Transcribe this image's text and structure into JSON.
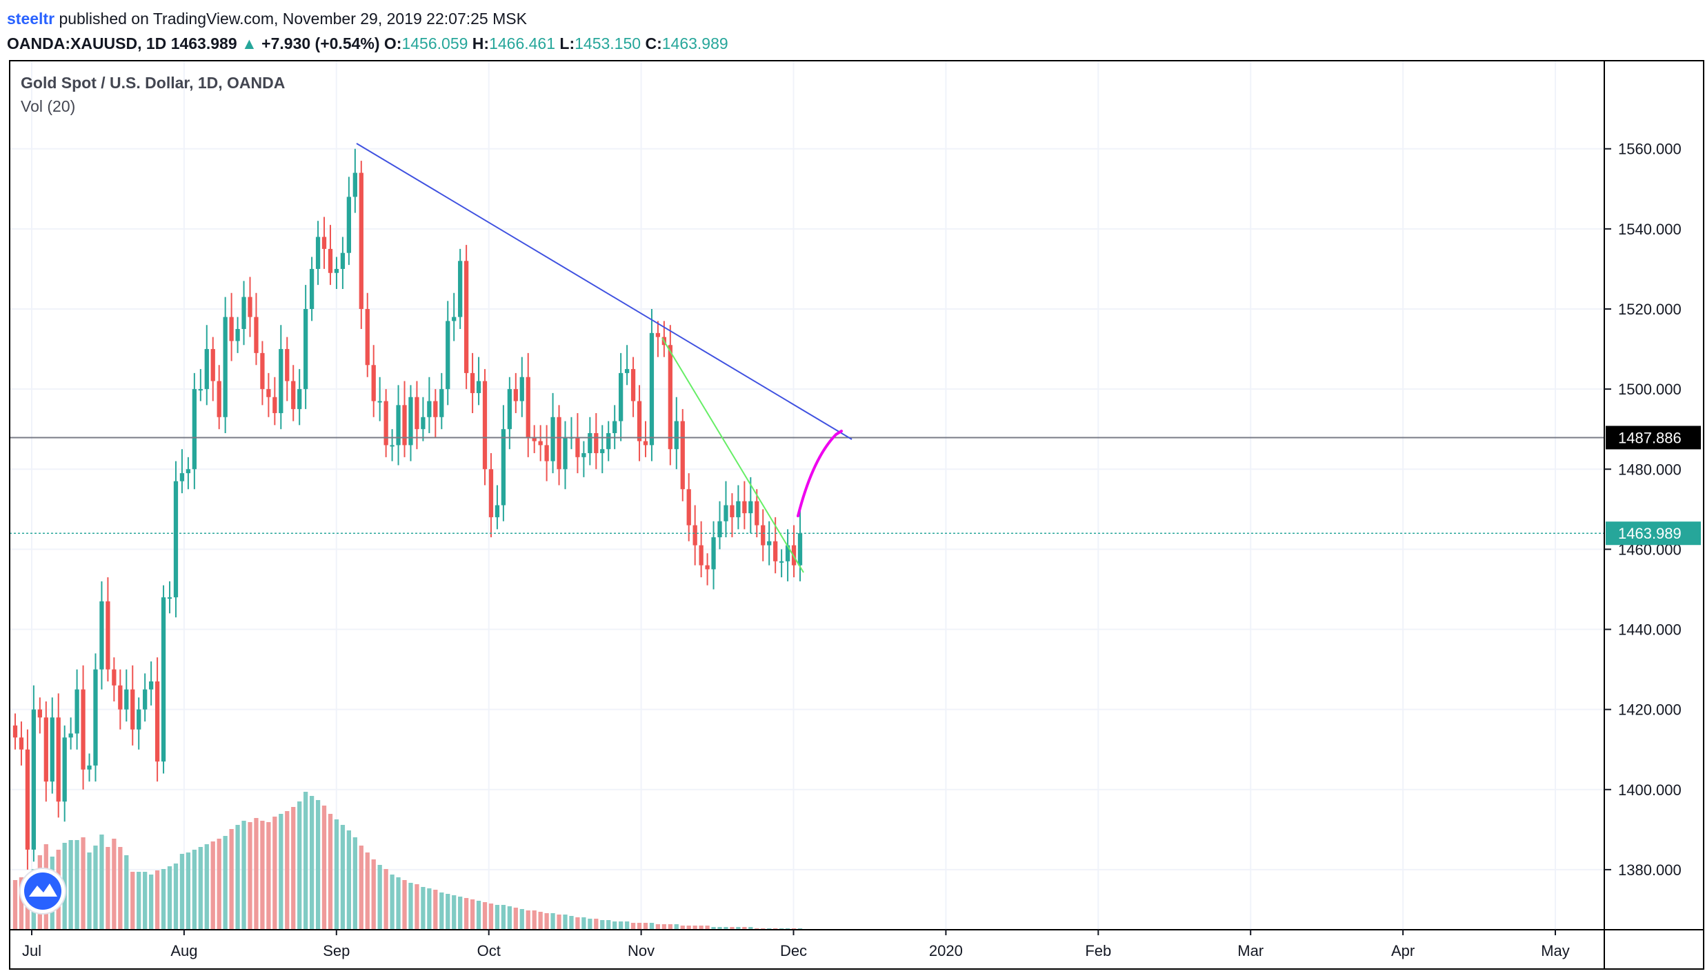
{
  "header": {
    "author": "steeltr",
    "published": "published on TradingView.com, November 29, 2019 22:07:25 MSK",
    "symbol": "OANDA:XAUUSD, 1D",
    "last": "1463.989",
    "change": "+7.930 (+0.54%)",
    "open_label": "O:",
    "open": "1456.059",
    "high_label": "H:",
    "high": "1466.461",
    "low_label": "L:",
    "low": "1453.150",
    "close_label": "C:",
    "close": "1463.989"
  },
  "chart_data": {
    "type": "candlestick",
    "title": "Gold Spot / U.S. Dollar, 1D, OANDA",
    "subtitle": "Vol (20)",
    "ylim": [
      1365,
      1582
    ],
    "y_ticks": [
      "1380.000",
      "1400.000",
      "1420.000",
      "1440.000",
      "1460.000",
      "1480.000",
      "1500.000",
      "1520.000",
      "1540.000",
      "1560.000"
    ],
    "x_ticks": [
      "Jul",
      "Aug",
      "Sep",
      "Oct",
      "Nov",
      "Dec",
      "2020",
      "Feb",
      "Mar",
      "Apr",
      "May"
    ],
    "price_labels": [
      {
        "text": "1487.886",
        "value": 1487.886,
        "color": "#000000"
      },
      {
        "text": "1463.989",
        "value": 1463.989,
        "color": "#26a69a"
      }
    ],
    "horizontal_line": 1487.886,
    "up_color": "#26a69a",
    "down_color": "#ef5350",
    "close_path": [
      1413,
      1410,
      1385,
      1420,
      1418,
      1402,
      1418,
      1397,
      1413,
      1414,
      1425,
      1405,
      1406,
      1430,
      1447,
      1430,
      1426,
      1420,
      1425,
      1415,
      1420,
      1425,
      1427,
      1407,
      1448,
      1448,
      1477,
      1479,
      1480,
      1500,
      1500,
      1510,
      1502,
      1493,
      1518,
      1512,
      1515,
      1523,
      1518,
      1509,
      1500,
      1498,
      1494,
      1510,
      1502,
      1495,
      1500,
      1520,
      1530,
      1538,
      1535,
      1529,
      1530,
      1534,
      1548,
      1554,
      1520,
      1506,
      1497,
      1497,
      1486,
      1486,
      1496,
      1486,
      1498,
      1490,
      1493,
      1497,
      1493,
      1500,
      1517,
      1518,
      1532,
      1504,
      1499,
      1502,
      1480,
      1468,
      1471,
      1490,
      1500,
      1497,
      1503,
      1488,
      1487,
      1486,
      1482,
      1493,
      1480,
      1488,
      1488,
      1483,
      1484,
      1489,
      1484,
      1485,
      1489,
      1492,
      1504,
      1505,
      1497,
      1487,
      1486,
      1514,
      1513,
      1511,
      1485,
      1492,
      1475,
      1466,
      1461,
      1456,
      1455,
      1463,
      1467,
      1471,
      1468,
      1472,
      1469,
      1472,
      1466,
      1461,
      1462,
      1457,
      1457,
      1461,
      1456,
      1464
    ],
    "volume_levels": [
      0.36,
      0.38,
      0.34,
      0.44,
      0.54,
      0.62,
      0.53,
      0.58,
      0.63,
      0.65,
      0.65,
      0.67,
      0.56,
      0.61,
      0.69,
      0.6,
      0.66,
      0.6,
      0.54,
      0.42,
      0.42,
      0.42,
      0.4,
      0.43,
      0.44,
      0.46,
      0.48,
      0.55,
      0.56,
      0.58,
      0.6,
      0.62,
      0.64,
      0.66,
      0.68,
      0.73,
      0.76,
      0.79,
      0.78,
      0.81,
      0.79,
      0.78,
      0.82,
      0.84,
      0.86,
      0.89,
      0.93,
      1.0,
      0.97,
      0.94,
      0.9,
      0.84,
      0.8,
      0.76,
      0.72,
      0.67,
      0.61,
      0.56,
      0.51,
      0.47,
      0.44,
      0.4,
      0.38,
      0.36,
      0.34,
      0.33,
      0.31,
      0.3,
      0.29,
      0.27,
      0.26,
      0.25,
      0.24,
      0.23,
      0.22,
      0.21,
      0.2,
      0.19,
      0.18,
      0.18,
      0.17,
      0.16,
      0.15,
      0.14,
      0.14,
      0.13,
      0.12,
      0.12,
      0.11,
      0.11,
      0.1,
      0.09,
      0.09,
      0.08,
      0.08,
      0.07,
      0.07,
      0.06,
      0.06,
      0.06,
      0.05,
      0.05,
      0.05,
      0.05,
      0.04,
      0.04,
      0.04,
      0.04,
      0.03,
      0.03,
      0.03,
      0.03,
      0.03,
      0.02,
      0.02,
      0.02,
      0.02,
      0.02,
      0.02,
      0.02,
      0.01,
      0.01,
      0.01,
      0.01,
      0.01,
      0.01,
      0.01,
      0.01
    ]
  }
}
